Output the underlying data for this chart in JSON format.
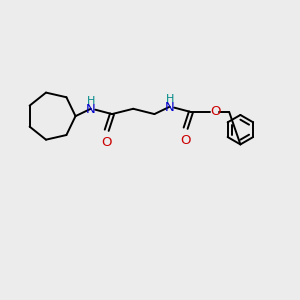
{
  "bg_color": "#ececec",
  "atom_colors": {
    "C": "#000000",
    "N": "#0000cc",
    "O": "#cc0000",
    "H_on_N": "#008888"
  },
  "bond_color": "#000000",
  "line_width": 1.4,
  "figsize": [
    3.0,
    3.0
  ],
  "dpi": 100
}
